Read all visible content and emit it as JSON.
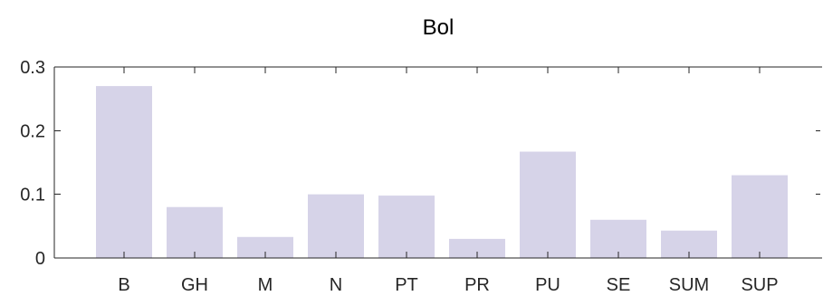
{
  "chart_data": {
    "type": "bar",
    "title": "Bol",
    "xlabel": "",
    "ylabel": "",
    "categories": [
      "B",
      "GH",
      "M",
      "N",
      "PT",
      "PR",
      "PU",
      "SE",
      "SUM",
      "SUP"
    ],
    "values": [
      0.27,
      0.08,
      0.033,
      0.1,
      0.098,
      0.03,
      0.167,
      0.06,
      0.043,
      0.13
    ],
    "ylim": [
      0,
      0.3
    ],
    "yticks": [
      0,
      0.1,
      0.2,
      0.3
    ],
    "ytick_labels": [
      "0",
      "0.1",
      "0.2",
      "0.3"
    ],
    "bar_color": "#d6d3e8",
    "axis_color": "#262626",
    "grid": false,
    "legend": "none"
  }
}
